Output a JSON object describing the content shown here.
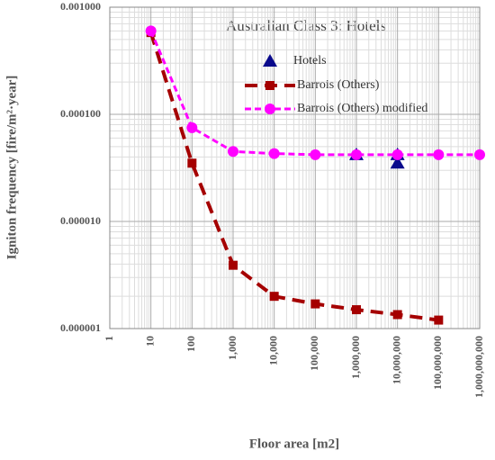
{
  "chart_data": {
    "type": "line",
    "title": "Australian Class 3: Hotels",
    "x_label": "Floor area [m2]",
    "y_label": "Igniton frequency [fire/m²·year]",
    "log_scale": {
      "x": true,
      "y": true
    },
    "grid": true,
    "xlim": [
      1,
      1000000000
    ],
    "ylim": [
      1e-06,
      0.001
    ],
    "xticks": [
      1,
      10,
      100,
      {
        "value": 1000,
        "label": "1,000"
      },
      {
        "value": 10000,
        "label": "10,000"
      },
      {
        "value": 100000,
        "label": "100,000"
      },
      {
        "value": 1000000,
        "label": "1,000,000"
      },
      {
        "value": 10000000,
        "label": "10,000,000"
      },
      {
        "value": 100000000,
        "label": "100,000,000"
      },
      {
        "value": 1000000000,
        "label": "1,000,000,000"
      }
    ],
    "yticks": [
      {
        "value": 1e-06,
        "label": "0.000001"
      },
      {
        "value": 1e-05,
        "label": "0.000010"
      },
      {
        "value": 0.0001,
        "label": "0.000100"
      },
      {
        "value": 0.001,
        "label": "0.001000"
      }
    ],
    "series": [
      {
        "name": "Hotels",
        "color": "#0a0a8c",
        "marker": "triangle",
        "line": false,
        "x": [
          1000000,
          10000000,
          10000000
        ],
        "values": [
          4.2e-05,
          4.2e-05,
          3.5e-05
        ]
      },
      {
        "name": "Barrois (Others)",
        "color": "#a50000",
        "marker": "square",
        "line": true,
        "x": [
          10,
          100,
          1000,
          10000,
          100000,
          1000000,
          10000000,
          100000000
        ],
        "values": [
          0.00058,
          3.5e-05,
          3.9e-06,
          2e-06,
          1.7e-06,
          1.5e-06,
          1.35e-06,
          1.2e-06
        ]
      },
      {
        "name": "Barrois (Others) modified",
        "color": "#ff00ff",
        "marker": "circle",
        "line": true,
        "x": [
          10,
          100,
          1000,
          10000,
          100000,
          1000000,
          10000000,
          100000000,
          1000000000
        ],
        "values": [
          0.0006,
          7.5e-05,
          4.5e-05,
          4.3e-05,
          4.2e-05,
          4.2e-05,
          4.2e-05,
          4.2e-05,
          4.2e-05
        ]
      }
    ]
  }
}
